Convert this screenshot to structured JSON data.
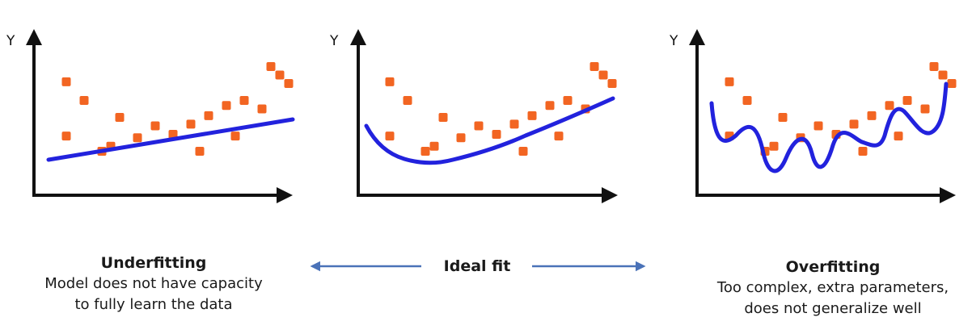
{
  "colors": {
    "axis": "#111111",
    "point": "#f26522",
    "fit_line": "#2222dd",
    "arrow": "#4a72b8"
  },
  "panels": [
    {
      "name": "underfitting",
      "y_axis_label": "Y",
      "fit_type": "linear"
    },
    {
      "name": "ideal",
      "y_axis_label": "Y",
      "fit_type": "quadratic"
    },
    {
      "name": "overfitting",
      "y_axis_label": "Y",
      "fit_type": "wiggly"
    }
  ],
  "captions": {
    "underfitting": {
      "title": "Underfitting",
      "description_line1": "Model does not have capacity",
      "description_line2": "to fully learn the data"
    },
    "ideal": {
      "title": "Ideal fit"
    },
    "overfitting": {
      "title": "Overfitting",
      "description_line1": "Too complex, extra parameters,",
      "description_line2": "does not generalize well"
    }
  },
  "chart_data": [
    {
      "type": "scatter",
      "fit": "linear",
      "points": [
        [
          1,
          6.6
        ],
        [
          2,
          5.5
        ],
        [
          1,
          3.4
        ],
        [
          4,
          4.5
        ],
        [
          6,
          4.0
        ],
        [
          5,
          3.3
        ],
        [
          3,
          2.5
        ],
        [
          3.5,
          2.8
        ],
        [
          7,
          3.5
        ],
        [
          8,
          4.1
        ],
        [
          8.5,
          2.5
        ],
        [
          9,
          4.6
        ],
        [
          10,
          5.2
        ],
        [
          10.5,
          3.4
        ],
        [
          11,
          5.5
        ],
        [
          12,
          5.0
        ],
        [
          12.5,
          7.5
        ],
        [
          13,
          7.0
        ],
        [
          13.5,
          6.5
        ]
      ],
      "fit_line": [
        [
          0.5,
          3.5
        ],
        [
          13.5,
          5.0
        ]
      ]
    },
    {
      "type": "scatter",
      "fit": "quadratic",
      "points": [
        [
          1,
          6.6
        ],
        [
          2,
          5.5
        ],
        [
          1,
          3.4
        ],
        [
          4,
          4.5
        ],
        [
          6,
          4.0
        ],
        [
          5,
          3.3
        ],
        [
          3,
          2.5
        ],
        [
          3.5,
          2.8
        ],
        [
          7,
          3.5
        ],
        [
          8,
          4.1
        ],
        [
          8.5,
          2.5
        ],
        [
          9,
          4.6
        ],
        [
          10,
          5.2
        ],
        [
          10.5,
          3.4
        ],
        [
          11,
          5.5
        ],
        [
          12,
          5.0
        ],
        [
          12.5,
          7.5
        ],
        [
          13,
          7.0
        ],
        [
          13.5,
          6.5
        ]
      ],
      "fit_line": [
        [
          0.5,
          5.2
        ],
        [
          6,
          2.8
        ],
        [
          13.5,
          6.5
        ]
      ]
    },
    {
      "type": "scatter",
      "fit": "wiggly",
      "points": [
        [
          1,
          6.6
        ],
        [
          2,
          5.5
        ],
        [
          1,
          3.4
        ],
        [
          4,
          4.5
        ],
        [
          6,
          4.0
        ],
        [
          5,
          3.3
        ],
        [
          3,
          2.5
        ],
        [
          3.5,
          2.8
        ],
        [
          7,
          3.5
        ],
        [
          8,
          4.1
        ],
        [
          8.5,
          2.5
        ],
        [
          9,
          4.6
        ],
        [
          10,
          5.2
        ],
        [
          10.5,
          3.4
        ],
        [
          11,
          5.5
        ],
        [
          12,
          5.0
        ],
        [
          12.5,
          7.5
        ],
        [
          13,
          7.0
        ],
        [
          13.5,
          6.5
        ]
      ],
      "fit_line": [
        [
          0.5,
          6.8
        ],
        [
          1.5,
          4.3
        ],
        [
          2.5,
          5.3
        ],
        [
          3.5,
          2.6
        ],
        [
          5,
          4.6
        ],
        [
          6,
          2.8
        ],
        [
          7,
          4.3
        ],
        [
          8,
          3.9
        ],
        [
          9,
          4.1
        ],
        [
          10,
          6.0
        ],
        [
          11,
          4.3
        ],
        [
          12.5,
          6.8
        ]
      ]
    }
  ]
}
